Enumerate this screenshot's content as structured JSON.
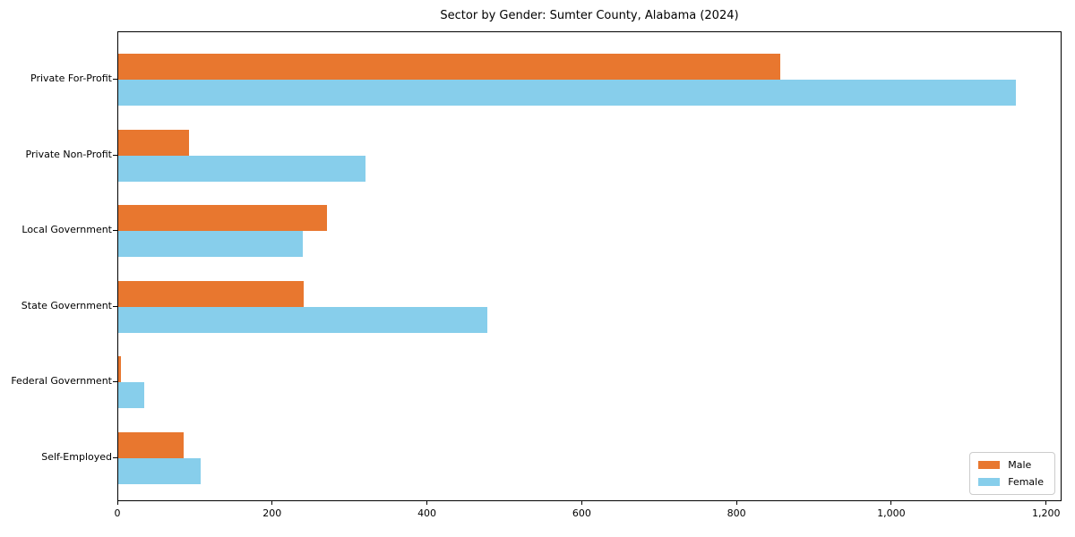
{
  "chart_data": {
    "type": "bar",
    "orientation": "horizontal",
    "title": "Sector by Gender: Sumter County, Alabama (2024)",
    "categories": [
      "Private For-Profit",
      "Private Non-Profit",
      "Local Government",
      "State Government",
      "Federal Government",
      "Self-Employed"
    ],
    "series": [
      {
        "name": "Male",
        "color": "#E8772F",
        "values": [
          855,
          92,
          270,
          240,
          3,
          84
        ]
      },
      {
        "name": "Female",
        "color": "#87CEEB",
        "values": [
          1160,
          320,
          238,
          477,
          33,
          107
        ]
      }
    ],
    "xlabel": "",
    "ylabel": "",
    "xlim": [
      0,
      1220
    ],
    "x_ticks": [
      {
        "value": 0,
        "label": "0"
      },
      {
        "value": 200,
        "label": "200"
      },
      {
        "value": 400,
        "label": "400"
      },
      {
        "value": 600,
        "label": "600"
      },
      {
        "value": 800,
        "label": "800"
      },
      {
        "value": 1000,
        "label": "1,000"
      },
      {
        "value": 1200,
        "label": "1,200"
      }
    ],
    "legend": {
      "position": "lower right"
    },
    "grid": false,
    "background": "#ffffff",
    "spine_color": "#000000"
  }
}
